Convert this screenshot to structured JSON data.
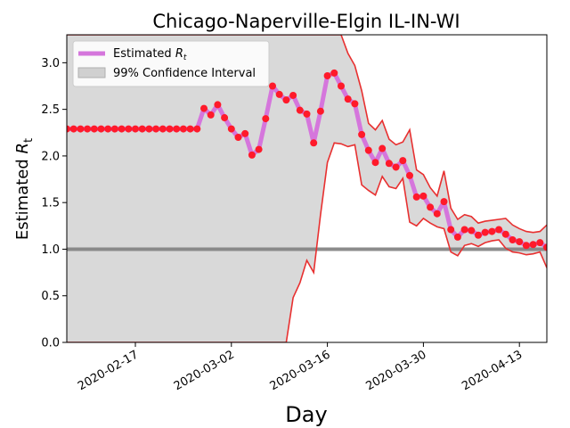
{
  "chart_data": {
    "type": "line",
    "title": "Chicago-Naperville-Elgin IL-IN-WI",
    "xlabel": "Day",
    "ylabel_main": "Estimated ",
    "ylabel_sub": "R",
    "ylabel_subscript": "t",
    "ylim": [
      0,
      3.3
    ],
    "yticks": [
      "0.0",
      "0.5",
      "1.0",
      "1.5",
      "2.0",
      "2.5",
      "3.0"
    ],
    "xticks": [
      "2020-02-17",
      "2020-03-02",
      "2020-03-16",
      "2020-03-30",
      "2020-04-13"
    ],
    "reference_line": 1.0,
    "legend": {
      "placement": "upper-left",
      "estimate_label": "Estimated ",
      "estimate_label_r": "R",
      "estimate_label_t": "t",
      "ci_label": "99% Confidence Interval"
    },
    "colors": {
      "estimate_line": "#d576dc",
      "points": "#ff1a2a",
      "ci_fill": "#d9d9d9",
      "ci_edge": "#e83030",
      "reference": "#808080"
    },
    "days_start": "2020-02-07",
    "series": [
      {
        "name": "Estimated Rt",
        "values": [
          2.29,
          2.29,
          2.29,
          2.29,
          2.29,
          2.29,
          2.29,
          2.29,
          2.29,
          2.29,
          2.29,
          2.29,
          2.29,
          2.29,
          2.29,
          2.29,
          2.29,
          2.29,
          2.29,
          2.29,
          2.51,
          2.44,
          2.55,
          2.41,
          2.29,
          2.2,
          2.24,
          2.01,
          2.07,
          2.4,
          2.75,
          2.66,
          2.6,
          2.65,
          2.49,
          2.45,
          2.14,
          2.48,
          2.86,
          2.89,
          2.75,
          2.61,
          2.56,
          2.23,
          2.06,
          1.93,
          2.08,
          1.92,
          1.88,
          1.95,
          1.79,
          1.56,
          1.57,
          1.45,
          1.38,
          1.51,
          1.21,
          1.13,
          1.21,
          1.2,
          1.15,
          1.18,
          1.19,
          1.21,
          1.16,
          1.1,
          1.08,
          1.04,
          1.05,
          1.07,
          1.02
        ]
      },
      {
        "name": "99% CI upper",
        "values": [
          3.3,
          3.3,
          3.3,
          3.3,
          3.3,
          3.3,
          3.3,
          3.3,
          3.3,
          3.3,
          3.3,
          3.3,
          3.3,
          3.3,
          3.3,
          3.3,
          3.3,
          3.3,
          3.3,
          3.3,
          3.3,
          3.3,
          3.3,
          3.3,
          3.3,
          3.3,
          3.3,
          3.3,
          3.3,
          3.3,
          3.3,
          3.3,
          3.3,
          3.3,
          3.3,
          3.3,
          3.3,
          3.3,
          3.3,
          3.3,
          3.3,
          3.1,
          2.97,
          2.7,
          2.35,
          2.28,
          2.38,
          2.18,
          2.12,
          2.15,
          2.28,
          1.85,
          1.8,
          1.66,
          1.57,
          1.84,
          1.44,
          1.32,
          1.37,
          1.35,
          1.28,
          1.3,
          1.31,
          1.32,
          1.33,
          1.26,
          1.22,
          1.19,
          1.18,
          1.19,
          1.26
        ]
      },
      {
        "name": "99% CI lower",
        "values": [
          0,
          0,
          0,
          0,
          0,
          0,
          0,
          0,
          0,
          0,
          0,
          0,
          0,
          0,
          0,
          0,
          0,
          0,
          0,
          0,
          0,
          0,
          0,
          0,
          0,
          0,
          0,
          0,
          0,
          0,
          0,
          0,
          0,
          0.48,
          0.64,
          0.88,
          0.75,
          1.37,
          1.93,
          2.14,
          2.13,
          2.1,
          2.12,
          1.69,
          1.63,
          1.58,
          1.78,
          1.67,
          1.65,
          1.76,
          1.29,
          1.25,
          1.33,
          1.28,
          1.24,
          1.22,
          0.97,
          0.93,
          1.04,
          1.06,
          1.03,
          1.07,
          1.09,
          1.1,
          1.01,
          0.97,
          0.96,
          0.94,
          0.95,
          0.97,
          0.8
        ]
      }
    ]
  }
}
